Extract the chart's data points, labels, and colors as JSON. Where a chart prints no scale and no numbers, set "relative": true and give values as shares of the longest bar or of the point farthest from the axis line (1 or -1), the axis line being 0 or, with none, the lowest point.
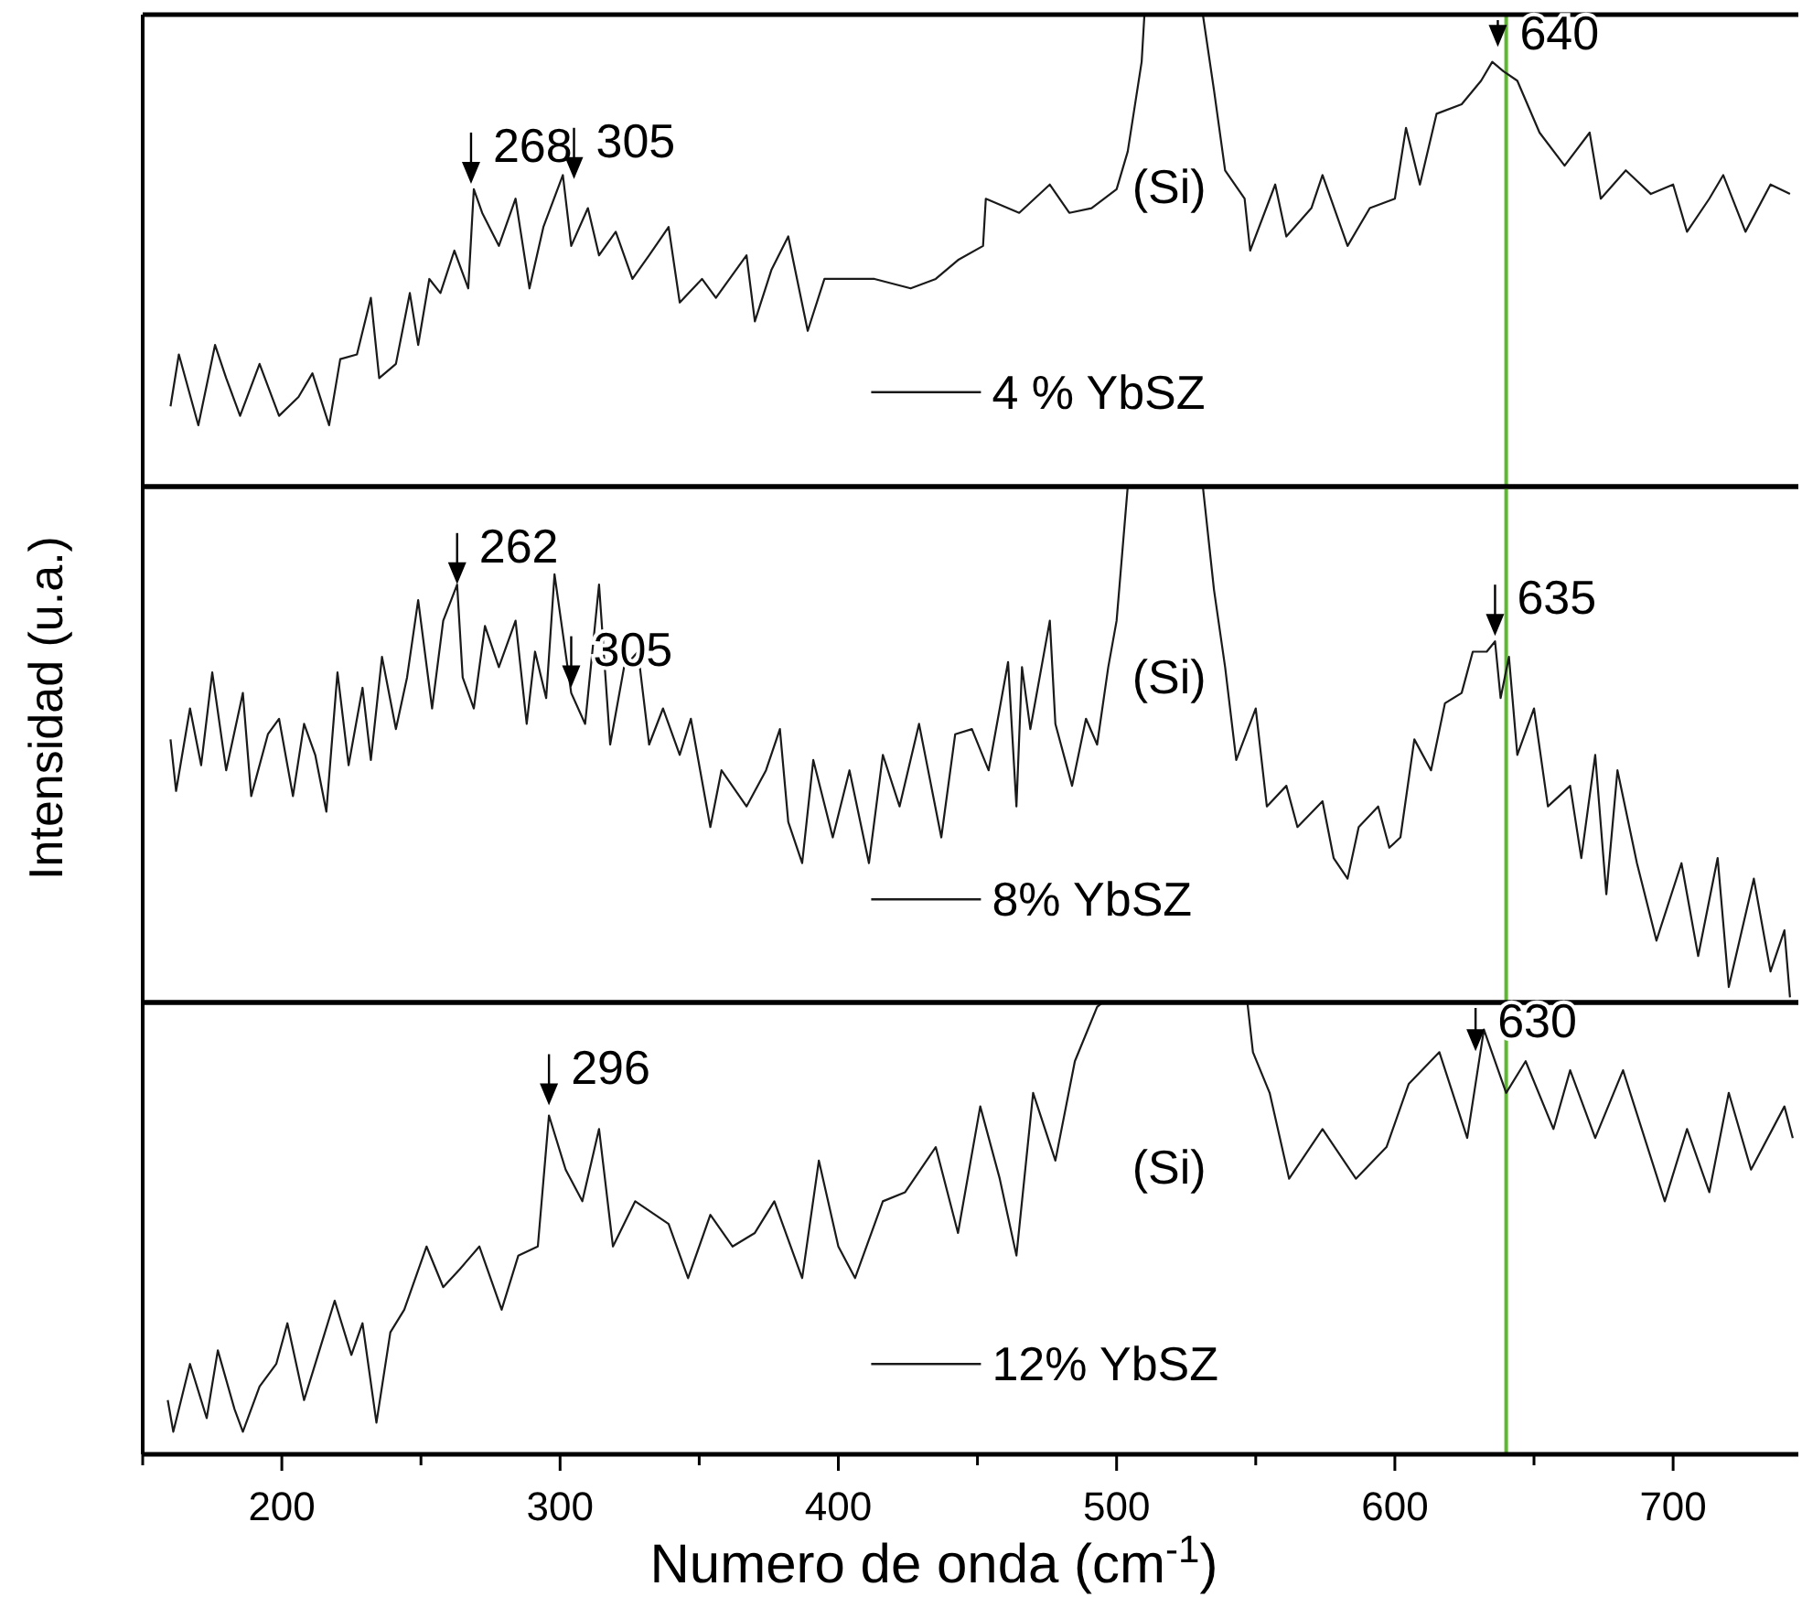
{
  "chart_data": [
    {
      "type": "line",
      "xlim": [
        150,
        745
      ],
      "relative": true,
      "tick_labels": false,
      "legend": "bottom",
      "ref_lines": [
        {
          "axis": "x",
          "value": 640,
          "color": "#5cb82e"
        }
      ],
      "annotations": [
        {
          "text": "268",
          "x": 268,
          "y": 0.63
        },
        {
          "text": "305",
          "x": 305,
          "y": 0.64
        },
        {
          "text": "640",
          "x": 637,
          "y": 0.92
        },
        "(Si)"
      ],
      "series": [
        {
          "name": "4 % YbSZ",
          "color": "#1a1a1a",
          "x": [
            160,
            163,
            170,
            176,
            180,
            185,
            192,
            199,
            206,
            211,
            217,
            221,
            227,
            232,
            235,
            241,
            246,
            249,
            253,
            257,
            262,
            267,
            269,
            272,
            278,
            284,
            289,
            294,
            301,
            304,
            310,
            314,
            320,
            326,
            332,
            339,
            343,
            351,
            356,
            367,
            370,
            376,
            382,
            389,
            395,
            404,
            413,
            426,
            435,
            443,
            452,
            453,
            465,
            476,
            483,
            491,
            500,
            504,
            509,
            510,
            531,
            535,
            539,
            546,
            548,
            557,
            561,
            570,
            574,
            583,
            591,
            600,
            604,
            609,
            615,
            624,
            631,
            635,
            639,
            644,
            652,
            661,
            670,
            674,
            683,
            692,
            700,
            705,
            713,
            718,
            726,
            735,
            742
          ],
          "values": [
            0.17,
            0.28,
            0.13,
            0.3,
            0.23,
            0.15,
            0.26,
            0.15,
            0.19,
            0.24,
            0.13,
            0.27,
            0.28,
            0.4,
            0.23,
            0.26,
            0.41,
            0.3,
            0.44,
            0.41,
            0.5,
            0.42,
            0.63,
            0.58,
            0.51,
            0.61,
            0.42,
            0.55,
            0.66,
            0.51,
            0.59,
            0.49,
            0.54,
            0.44,
            0.49,
            0.55,
            0.39,
            0.44,
            0.4,
            0.49,
            0.35,
            0.46,
            0.53,
            0.33,
            0.44,
            0.44,
            0.44,
            0.42,
            0.44,
            0.48,
            0.51,
            0.61,
            0.58,
            0.64,
            0.58,
            0.59,
            0.63,
            0.71,
            0.9,
            1.0,
            1.0,
            0.84,
            0.67,
            0.61,
            0.5,
            0.64,
            0.53,
            0.59,
            0.66,
            0.51,
            0.59,
            0.61,
            0.76,
            0.64,
            0.79,
            0.81,
            0.86,
            0.9,
            0.88,
            0.86,
            0.75,
            0.68,
            0.75,
            0.61,
            0.67,
            0.62,
            0.64,
            0.54,
            0.61,
            0.66,
            0.54,
            0.64,
            0.62
          ]
        }
      ]
    },
    {
      "type": "line",
      "xlim": [
        150,
        745
      ],
      "relative": true,
      "tick_labels": false,
      "legend": "bottom",
      "ylabel": "Intensidad (u.a.)",
      "ref_lines": [
        {
          "axis": "x",
          "value": 640,
          "color": "#5cb82e"
        }
      ],
      "annotations": [
        {
          "text": "262",
          "x": 263,
          "y": 0.8
        },
        {
          "text": "305",
          "x": 304,
          "y": 0.6
        },
        {
          "text": "635",
          "x": 636,
          "y": 0.7
        },
        "(Si)"
      ],
      "series": [
        {
          "name": "8% YbSZ",
          "color": "#1a1a1a",
          "x": [
            160,
            162,
            167,
            171,
            175,
            180,
            186,
            189,
            195,
            199,
            204,
            208,
            212,
            216,
            220,
            224,
            229,
            232,
            236,
            241,
            245,
            249,
            254,
            258,
            263,
            265,
            269,
            273,
            278,
            284,
            288,
            291,
            295,
            298,
            304,
            309,
            314,
            318,
            323,
            328,
            332,
            337,
            343,
            347,
            354,
            358,
            367,
            374,
            379,
            382,
            387,
            391,
            398,
            404,
            411,
            416,
            422,
            429,
            437,
            442,
            448,
            454,
            461,
            464,
            466,
            469,
            476,
            478,
            484,
            489,
            493,
            497,
            500,
            502,
            504,
            531,
            535,
            539,
            543,
            550,
            554,
            561,
            565,
            574,
            578,
            583,
            587,
            594,
            598,
            602,
            607,
            613,
            618,
            624,
            628,
            633,
            636,
            638,
            641,
            644,
            650,
            655,
            663,
            667,
            672,
            676,
            680,
            687,
            694,
            703,
            709,
            716,
            720,
            729,
            735,
            740,
            742
          ],
          "values": [
            0.51,
            0.41,
            0.57,
            0.46,
            0.64,
            0.45,
            0.6,
            0.4,
            0.52,
            0.55,
            0.4,
            0.54,
            0.48,
            0.37,
            0.64,
            0.46,
            0.61,
            0.47,
            0.67,
            0.53,
            0.63,
            0.78,
            0.57,
            0.74,
            0.81,
            0.63,
            0.57,
            0.73,
            0.65,
            0.74,
            0.54,
            0.68,
            0.59,
            0.83,
            0.6,
            0.54,
            0.81,
            0.5,
            0.65,
            0.68,
            0.5,
            0.57,
            0.48,
            0.55,
            0.34,
            0.45,
            0.38,
            0.45,
            0.53,
            0.35,
            0.27,
            0.47,
            0.32,
            0.45,
            0.27,
            0.48,
            0.38,
            0.54,
            0.32,
            0.52,
            0.53,
            0.45,
            0.66,
            0.38,
            0.65,
            0.53,
            0.74,
            0.54,
            0.42,
            0.55,
            0.5,
            0.65,
            0.74,
            0.87,
            1.0,
            1.0,
            0.8,
            0.65,
            0.47,
            0.57,
            0.38,
            0.42,
            0.34,
            0.39,
            0.28,
            0.24,
            0.34,
            0.38,
            0.3,
            0.32,
            0.51,
            0.45,
            0.58,
            0.6,
            0.68,
            0.68,
            0.7,
            0.59,
            0.67,
            0.48,
            0.57,
            0.38,
            0.42,
            0.28,
            0.48,
            0.21,
            0.45,
            0.27,
            0.12,
            0.27,
            0.09,
            0.28,
            0.03,
            0.24,
            0.06,
            0.14,
            0.01
          ]
        }
      ]
    },
    {
      "type": "line",
      "xlim": [
        150,
        745
      ],
      "relative": true,
      "tick_labels": "x",
      "legend": "bottom",
      "xlabel": "Numero de onda (cm$^{-1}$)",
      "xticks": [
        {
          "value": 150,
          "label": null
        },
        200,
        {
          "value": 250,
          "label": null
        },
        300,
        {
          "value": 350,
          "label": null
        },
        400,
        {
          "value": 450,
          "label": null
        },
        500,
        {
          "value": 550,
          "label": null
        },
        600,
        {
          "value": 650,
          "label": null
        },
        700
      ],
      "ref_lines": [
        {
          "axis": "x",
          "value": 640,
          "color": "#5cb82e"
        }
      ],
      "annotations": [
        {
          "text": "296",
          "x": 296,
          "y": 0.76
        },
        {
          "text": "630",
          "x": 629,
          "y": 0.88
        },
        "(Si)"
      ],
      "series": [
        {
          "name": "12% YbSZ",
          "color": "#1a1a1a",
          "x": [
            159,
            161,
            167,
            173,
            177,
            183,
            186,
            192,
            198,
            202,
            208,
            213,
            219,
            225,
            229,
            234,
            239,
            244,
            252,
            258,
            264,
            271,
            279,
            285,
            292,
            296,
            302,
            308,
            314,
            319,
            327,
            339,
            346,
            354,
            362,
            370,
            377,
            387,
            393,
            400,
            406,
            416,
            424,
            435,
            443,
            451,
            458,
            464,
            470,
            478,
            485,
            493,
            495,
            547,
            549,
            555,
            562,
            574,
            586,
            597,
            605,
            616,
            626,
            632,
            640,
            647,
            657,
            663,
            672,
            682,
            697,
            705,
            713,
            720,
            728,
            740,
            743
          ],
          "values": [
            0.12,
            0.05,
            0.2,
            0.08,
            0.23,
            0.1,
            0.05,
            0.15,
            0.2,
            0.29,
            0.12,
            0.22,
            0.34,
            0.22,
            0.29,
            0.07,
            0.27,
            0.32,
            0.46,
            0.37,
            0.41,
            0.46,
            0.32,
            0.44,
            0.46,
            0.75,
            0.63,
            0.56,
            0.72,
            0.46,
            0.56,
            0.51,
            0.39,
            0.53,
            0.46,
            0.49,
            0.56,
            0.39,
            0.65,
            0.46,
            0.39,
            0.56,
            0.58,
            0.68,
            0.49,
            0.77,
            0.61,
            0.44,
            0.8,
            0.65,
            0.87,
            0.99,
            1.0,
            1.0,
            0.89,
            0.8,
            0.61,
            0.72,
            0.61,
            0.68,
            0.82,
            0.89,
            0.7,
            0.94,
            0.8,
            0.87,
            0.72,
            0.85,
            0.7,
            0.85,
            0.56,
            0.72,
            0.58,
            0.8,
            0.63,
            0.77,
            0.7
          ]
        }
      ]
    }
  ]
}
